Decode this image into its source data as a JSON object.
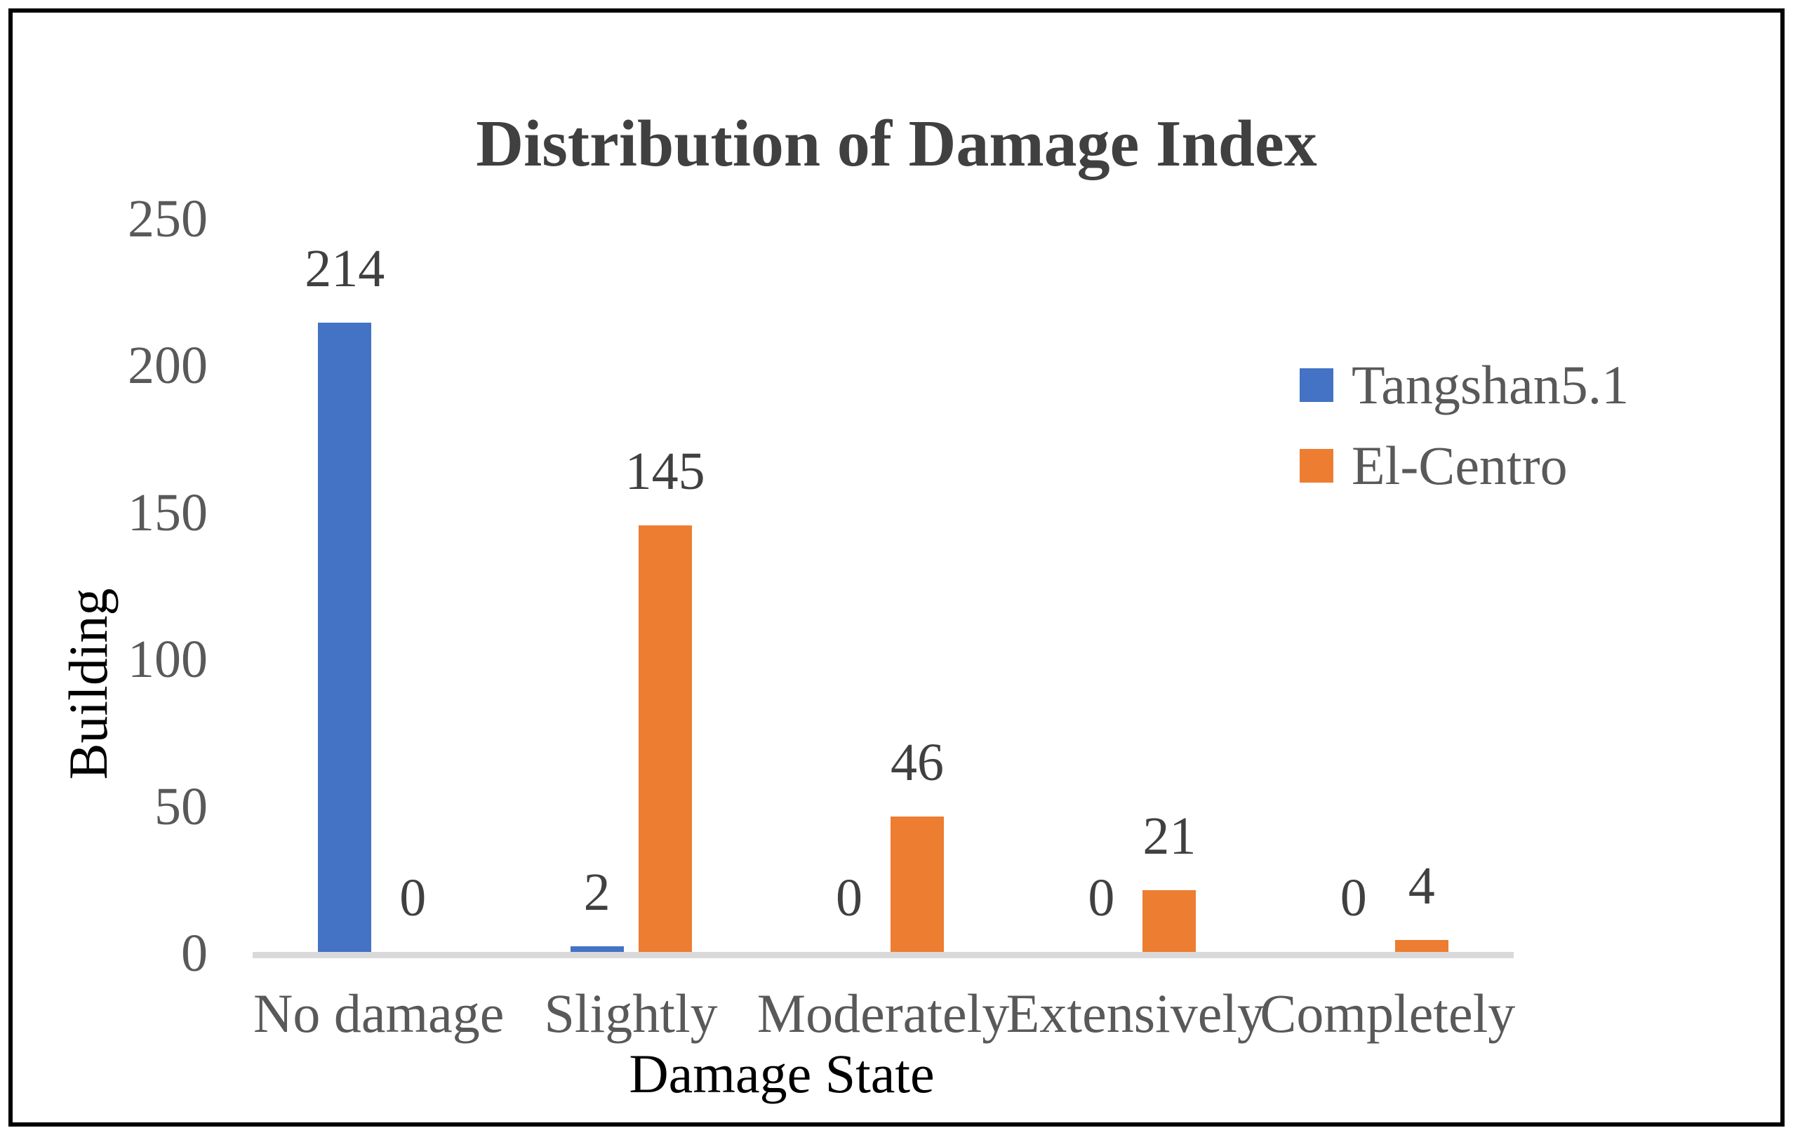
{
  "title": "Distribution of Damage Index",
  "chart_data": {
    "type": "bar",
    "title": "Distribution of Damage Index",
    "categories": [
      "No damage",
      "Slightly",
      "Moderately",
      "Extensively",
      "Completely"
    ],
    "series": [
      {
        "name": "Tangshan5.1",
        "color": "#4472C4",
        "values": [
          214,
          2,
          0,
          0,
          0
        ]
      },
      {
        "name": "El-Centro",
        "color": "#ED7D31",
        "values": [
          0,
          145,
          46,
          21,
          4
        ]
      }
    ],
    "xlabel": "Damage State",
    "ylabel": "Building",
    "ylim": [
      0,
      250
    ],
    "yticks": [
      0,
      50,
      100,
      150,
      200,
      250
    ],
    "grid": false,
    "legend_position": "upper-right",
    "data_labels": "outside-end",
    "colors": {
      "tick_text": "#595959",
      "category_text": "#595959",
      "legend_text": "#595959",
      "title_text": "#404040",
      "data_label_text": "#404040",
      "axis_title_text": "#000000",
      "axis_line": "#D9D9D9",
      "frame": "#000000",
      "background": "#ffffff"
    }
  }
}
